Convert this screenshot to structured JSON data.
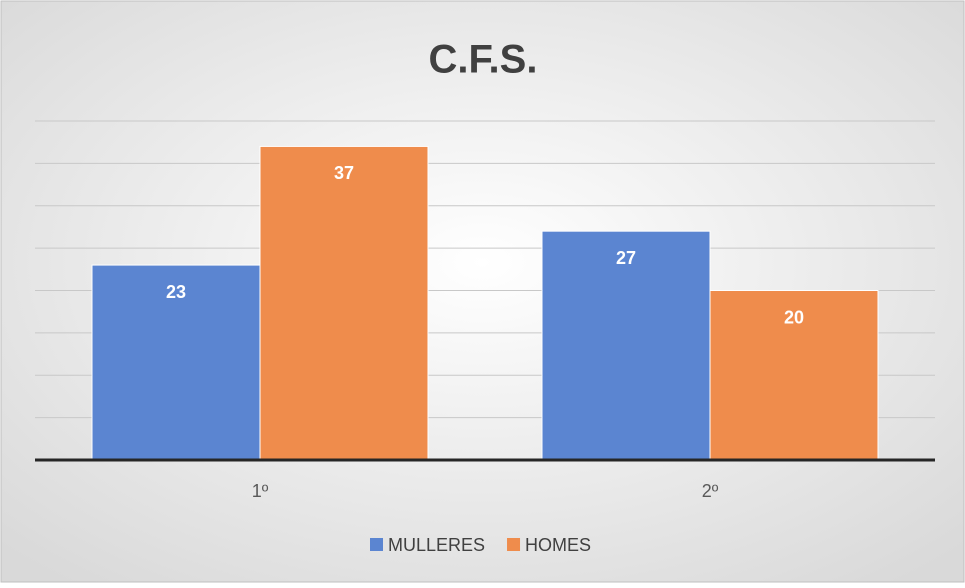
{
  "chart_data": {
    "type": "bar",
    "title": "C.F.S.",
    "categories": [
      "1º",
      "2º"
    ],
    "series": [
      {
        "name": "MULLERES",
        "color": "#5b85d1",
        "values": [
          23,
          27
        ]
      },
      {
        "name": "HOMES",
        "color": "#ef8c4c",
        "values": [
          37,
          20
        ]
      }
    ],
    "ylim": [
      0,
      40
    ],
    "yticks": [
      0,
      5,
      10,
      15,
      20,
      25,
      30,
      35,
      40
    ],
    "grid": true,
    "legend": "bottom"
  }
}
